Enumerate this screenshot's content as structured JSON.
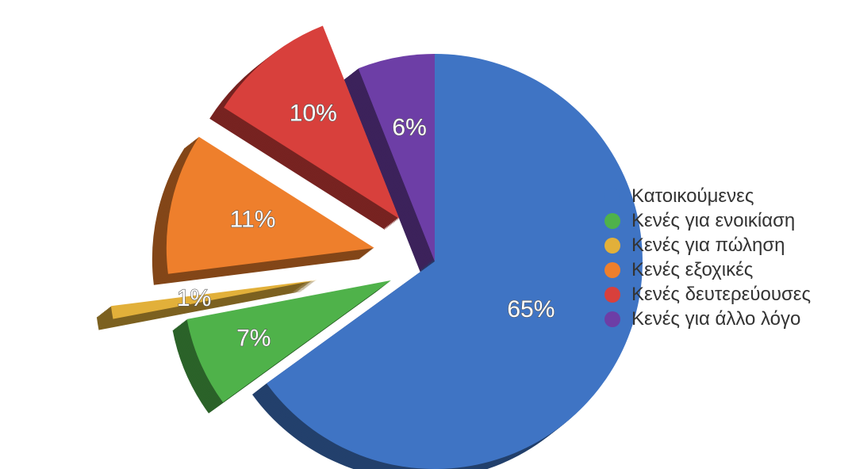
{
  "chart_data": {
    "type": "pie",
    "categories": [
      "Κατοικούμενες",
      "Κενές για ενοικίαση",
      "Κενές για πώληση",
      "Κενές εξοχικές",
      "Κενές δευτερεύουσες",
      "Κενές για άλλο λόγο"
    ],
    "values": [
      65,
      7,
      1,
      11,
      10,
      6
    ],
    "labels": [
      "65%",
      "7%",
      "1%",
      "11%",
      "10%",
      "6%"
    ],
    "colors": [
      "#3f74c4",
      "#4fb24a",
      "#e2b03a",
      "#ee7f2c",
      "#d8403c",
      "#6d3ea6"
    ],
    "legend_position": "right"
  }
}
